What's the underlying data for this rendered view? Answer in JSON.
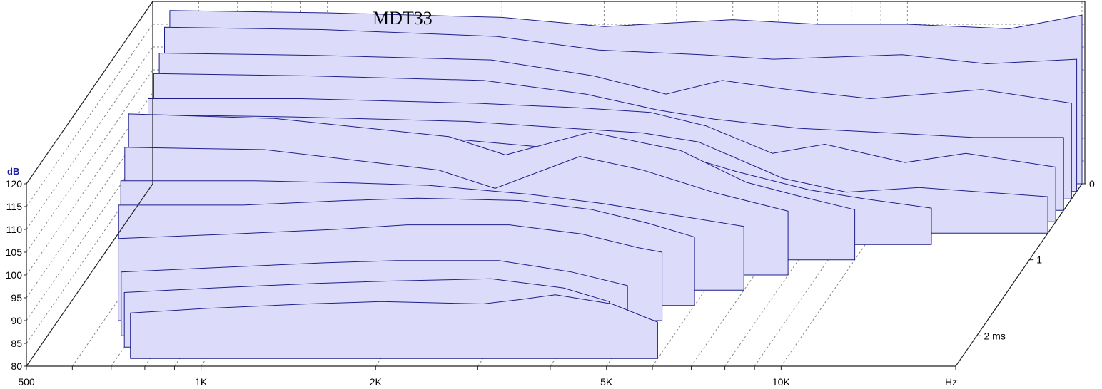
{
  "chart_data": {
    "type": "area",
    "title": "MDT33",
    "ylabel": "dB",
    "xlabel": "Hz",
    "zlabel": "ms",
    "x_scale": "log",
    "xlim": [
      500,
      20000
    ],
    "ylim": [
      80,
      120
    ],
    "zlim": [
      0,
      2.4
    ],
    "x_ticks": [
      500,
      1000,
      2000,
      5000,
      10000
    ],
    "x_tick_labels": [
      "500",
      "1K",
      "2K",
      "5K",
      "10K"
    ],
    "x_minor_ticks": [
      600,
      700,
      800,
      900,
      3000,
      4000,
      6000,
      7000,
      8000,
      9000,
      20000
    ],
    "y_ticks": [
      80,
      85,
      90,
      95,
      100,
      105,
      110,
      115,
      120
    ],
    "y_tick_labels": [
      "80",
      "85",
      "90",
      "95",
      "100",
      "105",
      "110",
      "115",
      "120"
    ],
    "z_ticks": [
      0,
      1,
      2
    ],
    "z_tick_labels": [
      "0",
      "1",
      "2 ms"
    ],
    "grid": true,
    "fill_color": "#dcdcfa",
    "line_color": "#1e1e8c",
    "series": [
      {
        "t": 0.0,
        "x": [
          535,
          1000,
          2000,
          3000,
          5000,
          7000,
          10000,
          15000,
          20000
        ],
        "y": [
          118,
          117.5,
          116.5,
          114.5,
          116,
          115,
          115,
          114,
          117
        ]
      },
      {
        "t": 0.1,
        "x": [
          535,
          1000,
          2000,
          3000,
          4500,
          6000,
          10000,
          14000,
          20000
        ],
        "y": [
          116,
          115.5,
          114,
          111,
          110,
          109,
          110,
          108,
          109
        ]
      },
      {
        "t": 0.2,
        "x": [
          535,
          1000,
          2000,
          3000,
          4000,
          5000,
          6500,
          9000,
          14000,
          20000
        ],
        "y": [
          112,
          111.5,
          110.5,
          107,
          103,
          106,
          104,
          102,
          104,
          101
        ]
      },
      {
        "t": 0.35,
        "x": [
          540,
          1000,
          2000,
          3000,
          4000,
          5000,
          7000,
          10000,
          14000,
          20000
        ],
        "y": [
          110,
          109.5,
          108.5,
          105.5,
          102,
          100,
          98,
          97,
          96,
          96
        ]
      },
      {
        "t": 0.5,
        "x": [
          545,
          1000,
          2000,
          3000,
          4000,
          5000,
          6500,
          8000,
          11000,
          14000,
          20000
        ],
        "y": [
          107,
          107,
          106,
          105,
          104,
          101,
          95,
          97,
          93,
          95,
          92
        ]
      },
      {
        "t": 0.65,
        "x": [
          550,
          1000,
          2000,
          3000,
          4000,
          5000,
          7000,
          9000,
          12000,
          20000
        ],
        "y": [
          106,
          105.5,
          104.5,
          103,
          102,
          100,
          92,
          89,
          90,
          88
        ]
      },
      {
        "t": 0.8,
        "x": [
          555,
          1000,
          2000,
          3000,
          4000,
          5000,
          6000,
          8000,
          10000,
          13000
        ],
        "y": [
          105,
          104.5,
          103,
          101,
          100,
          99,
          96,
          92,
          90,
          88
        ]
      },
      {
        "t": 1.0,
        "x": [
          560,
          1000,
          2000,
          2500,
          3500,
          5000,
          6500,
          8000,
          10000
        ],
        "y": [
          112,
          111,
          107,
          103,
          108,
          104,
          97,
          94,
          91
        ]
      },
      {
        "t": 1.2,
        "x": [
          575,
          1000,
          2000,
          2500,
          3500,
          4500,
          6000,
          8000
        ],
        "y": [
          108,
          107.5,
          103,
          99,
          106,
          103,
          98,
          94
        ]
      },
      {
        "t": 1.4,
        "x": [
          590,
          1000,
          1500,
          2000,
          3000,
          4000,
          5000,
          7000
        ],
        "y": [
          104,
          104,
          103.5,
          103,
          101,
          99,
          97,
          94
        ]
      },
      {
        "t": 1.6,
        "x": [
          610,
          1000,
          1500,
          2000,
          3000,
          4000,
          5000,
          6000
        ],
        "y": [
          102,
          102,
          103,
          103.5,
          103,
          101,
          98,
          95
        ]
      },
      {
        "t": 1.8,
        "x": [
          635,
          1000,
          1500,
          2000,
          3000,
          4000,
          5000,
          5500
        ],
        "y": [
          98,
          99,
          100,
          101,
          101,
          99,
          96,
          95
        ]
      },
      {
        "t": 2.0,
        "x": [
          670,
          1000,
          1500,
          2000,
          3000,
          4000,
          5000
        ],
        "y": [
          94,
          95,
          96,
          96.5,
          96.5,
          94,
          91
        ]
      },
      {
        "t": 2.15,
        "x": [
          700,
          1000,
          1500,
          2000,
          3000,
          4000,
          4800
        ],
        "y": [
          92,
          93,
          94,
          94.5,
          95,
          93,
          90
        ]
      },
      {
        "t": 2.3,
        "x": [
          740,
          1000,
          1500,
          2000,
          3000,
          3500,
          4000,
          5000,
          6000
        ],
        "y": [
          90,
          91,
          92,
          92.5,
          92,
          93,
          94,
          92,
          88
        ]
      }
    ]
  }
}
